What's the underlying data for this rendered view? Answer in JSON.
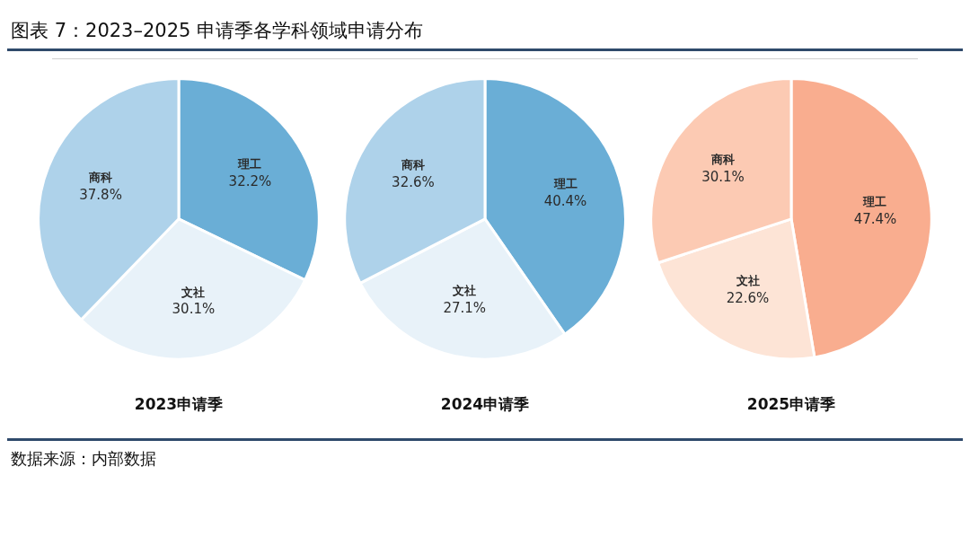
{
  "chart_data": [
    {
      "type": "pie",
      "title": "2023申请季",
      "categories": [
        "理工",
        "文社",
        "商科"
      ],
      "values": [
        32.2,
        30.1,
        37.8
      ],
      "colors": [
        "#6aaed6",
        "#e8f2f9",
        "#aed2ea"
      ],
      "value_labels": [
        "32.2%",
        "30.1%",
        "37.8%"
      ],
      "legend": false,
      "annotations": [
        "图表 7：2023–2025 申请季各学科领域申请分布",
        "数据来源：内部数据"
      ]
    },
    {
      "type": "pie",
      "title": "2024申请季",
      "categories": [
        "理工",
        "文社",
        "商科"
      ],
      "values": [
        40.4,
        27.1,
        32.6
      ],
      "colors": [
        "#6aaed6",
        "#e8f2f9",
        "#aed2ea"
      ],
      "value_labels": [
        "40.4%",
        "27.1%",
        "32.6%"
      ],
      "legend": false
    },
    {
      "type": "pie",
      "title": "2025申请季",
      "categories": [
        "理工",
        "文社",
        "商科"
      ],
      "values": [
        47.4,
        22.6,
        30.1
      ],
      "colors": [
        "#f9ad8f",
        "#fde4d6",
        "#fccab3"
      ],
      "value_labels": [
        "47.4%",
        "22.6%",
        "30.1%"
      ],
      "legend": false
    }
  ]
}
